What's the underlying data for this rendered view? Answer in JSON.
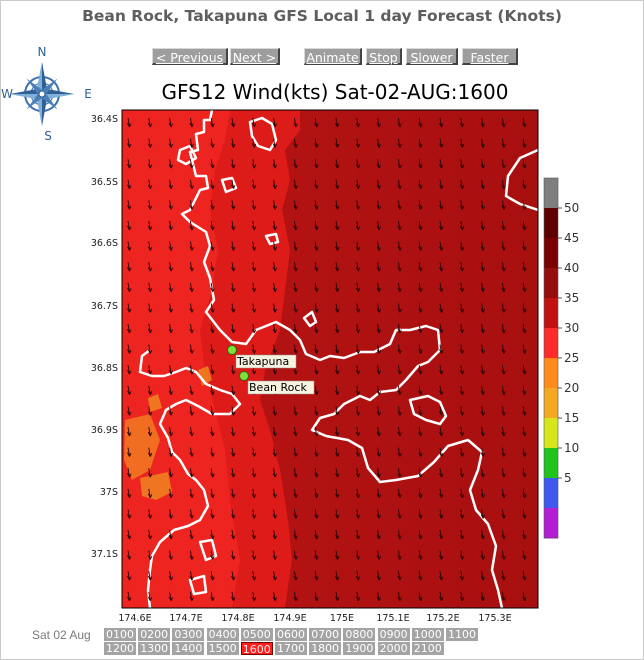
{
  "page": {
    "title": "Bean Rock, Takapuna GFS Local 1 day Forecast (Knots)"
  },
  "compass": {
    "n": "N",
    "s": "S",
    "e": "E",
    "w": "W"
  },
  "controls": [
    {
      "id": "previous",
      "label": "< Previous"
    },
    {
      "id": "next",
      "label": "Next >"
    },
    {
      "id": "animate",
      "label": "Animate"
    },
    {
      "id": "stop",
      "label": "Stop"
    },
    {
      "id": "slower",
      "label": "Slower"
    },
    {
      "id": "faster",
      "label": "Faster"
    }
  ],
  "map": {
    "title": "GFS12 Wind(kts) Sat-02-AUG:1600",
    "lat_labels": [
      "36.4S",
      "36.5S",
      "36.6S",
      "36.7S",
      "36.8S",
      "36.9S",
      "37S",
      "37.1S"
    ],
    "lon_labels": [
      "174.6E",
      "174.7E",
      "174.8E",
      "174.9E",
      "175E",
      "175.1E",
      "175.2E",
      "175.3E"
    ],
    "locations": [
      {
        "name": "Takapuna",
        "lon": 174.8,
        "lat": -36.79
      },
      {
        "name": "Bean Rock",
        "lon": 174.82,
        "lat": -36.83
      }
    ],
    "wind_direction": "S",
    "land_color": "#ea1d1a"
  },
  "legend": {
    "ticks": [
      "50",
      "45",
      "40",
      "35",
      "30",
      "25",
      "20",
      "15",
      "10",
      "5"
    ],
    "colors": [
      "#7f7f7f",
      "#5e0000",
      "#7a0000",
      "#960d0d",
      "#c21111",
      "#ff2a2a",
      "#ff8c1a",
      "#f5a821",
      "#d7e51c",
      "#23c31e",
      "#3f58ee",
      "#b31ed4"
    ]
  },
  "timebar": {
    "date_label": "Sat 02 Aug",
    "times": [
      "0100",
      "0200",
      "0300",
      "0400",
      "0500",
      "0600",
      "0700",
      "0800",
      "0900",
      "1000",
      "1100",
      "1200",
      "1300",
      "1400",
      "1500",
      "1600",
      "1700",
      "1800",
      "1900",
      "2000",
      "2100"
    ],
    "active": "1600"
  }
}
